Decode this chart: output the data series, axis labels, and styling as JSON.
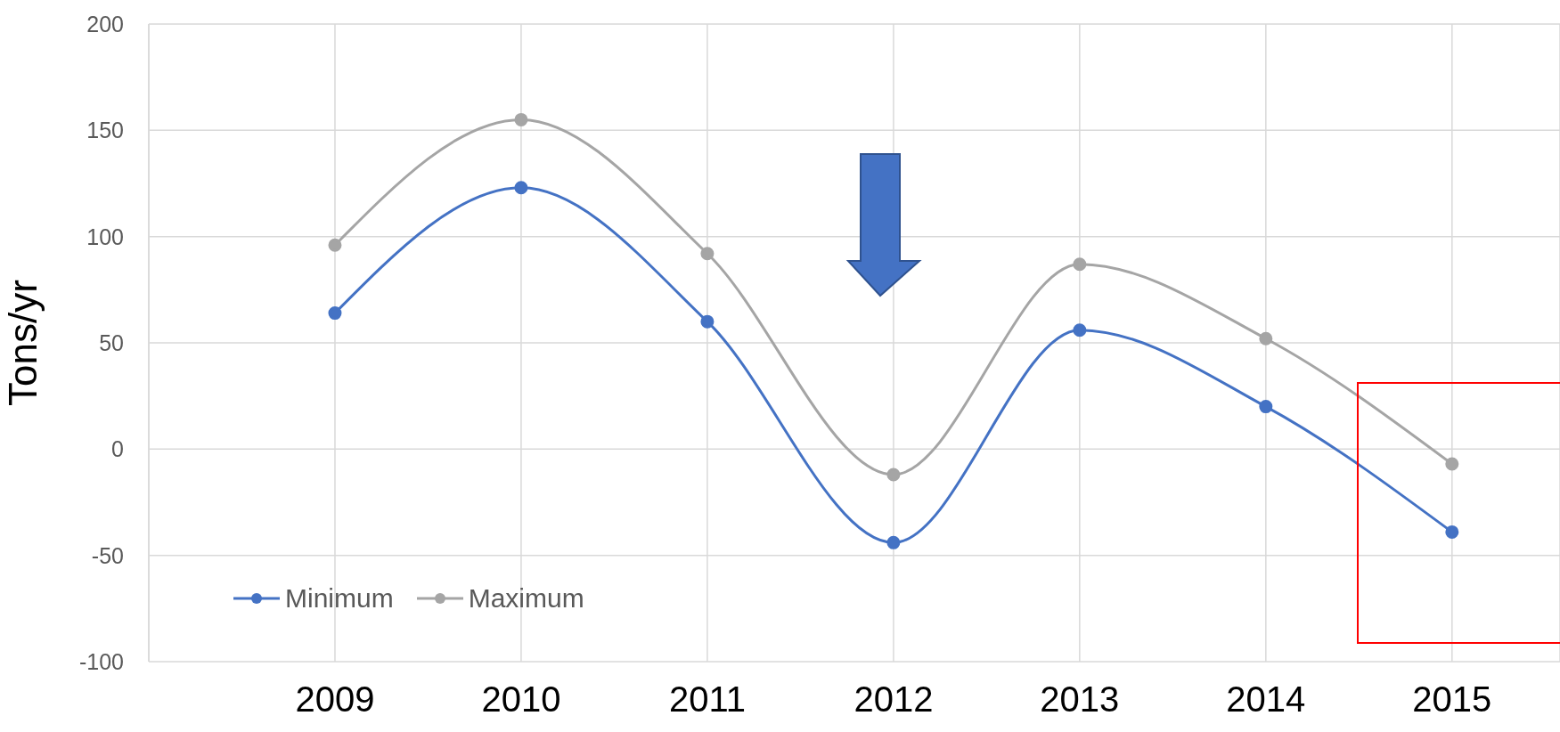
{
  "chart_data": {
    "type": "line",
    "ylabel": "Tons/yr",
    "categories": [
      "2009",
      "2010",
      "2011",
      "2012",
      "2013",
      "2014",
      "2015"
    ],
    "series": [
      {
        "name": "Minimum",
        "color": "#4472c4",
        "values": [
          64,
          123,
          60,
          -44,
          56,
          20,
          -39
        ]
      },
      {
        "name": "Maximum",
        "color": "#a5a5a5",
        "values": [
          96,
          155,
          92,
          -12,
          87,
          52,
          -7
        ]
      }
    ],
    "ylim": [
      -100,
      200
    ],
    "yticks": [
      -100,
      -50,
      0,
      50,
      100,
      150,
      200
    ],
    "grid": true,
    "legend": "bottom left",
    "marker": "circle",
    "line_style": "solid"
  }
}
